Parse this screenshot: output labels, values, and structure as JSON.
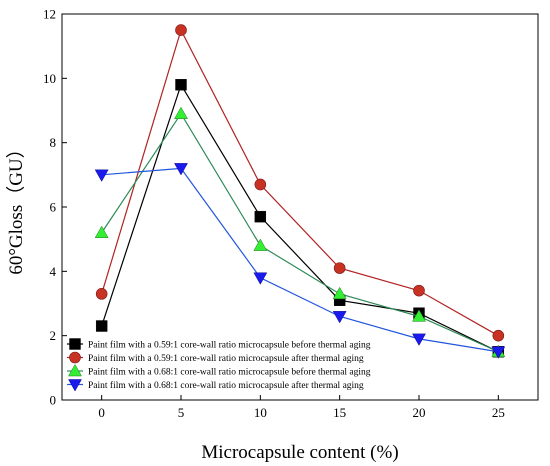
{
  "chart_data": {
    "type": "line",
    "xlabel": "Microcapsule content (%)",
    "ylabel": "60°Gloss（GU）",
    "xlim": [
      -2.5,
      27.5
    ],
    "ylim": [
      0,
      12
    ],
    "x_ticks": [
      0,
      5,
      10,
      15,
      20,
      25
    ],
    "y_ticks": [
      0,
      2,
      4,
      6,
      8,
      10,
      12
    ],
    "x_tick_labels": [
      "0",
      "5",
      "10",
      "15",
      "20",
      "25"
    ],
    "y_tick_labels": [
      "0",
      "2",
      "4",
      "6",
      "8",
      "10",
      "12"
    ],
    "grid": false,
    "legend_position": "bottom-left",
    "x": [
      0,
      5,
      10,
      15,
      20,
      25
    ],
    "series": [
      {
        "name": "Paint film with a 0.59:1 core-wall ratio microcapsule before thermal aging",
        "values": [
          2.3,
          9.8,
          5.7,
          3.1,
          2.7,
          1.5
        ],
        "color": "#000000",
        "marker": "square"
      },
      {
        "name": "Paint film with a 0.59:1 core-wall ratio microcapsule after thermal aging",
        "values": [
          3.3,
          11.5,
          6.7,
          4.1,
          3.4,
          2.0
        ],
        "color": "#b22222",
        "marker_color": "#c83222",
        "marker": "circle"
      },
      {
        "name": "Paint film with a 0.68:1 core-wall ratio microcapsule before thermal aging",
        "values": [
          5.2,
          8.9,
          4.8,
          3.3,
          2.6,
          1.5
        ],
        "color": "#2e8b57",
        "marker_color": "#33ee33",
        "marker": "triangle-up"
      },
      {
        "name": "Paint film with a 0.68:1 core-wall ratio microcapsule after thermal aging",
        "values": [
          7.0,
          7.2,
          3.8,
          2.6,
          1.9,
          1.5
        ],
        "color": "#2255dd",
        "marker_color": "#1a1aee",
        "marker": "triangle-down"
      }
    ]
  }
}
